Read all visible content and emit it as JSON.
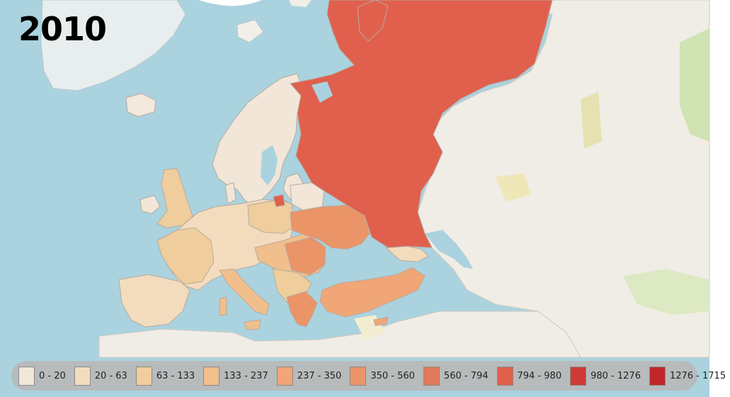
{
  "title": {
    "year": "2010"
  },
  "legend": {
    "items": [
      {
        "label": "0 - 20",
        "color": "#f1e6d8"
      },
      {
        "label": "20 - 63",
        "color": "#f3dcbd"
      },
      {
        "label": "63 - 133",
        "color": "#efcd9c"
      },
      {
        "label": "133 - 237",
        "color": "#f0bf8c"
      },
      {
        "label": "237 - 350",
        "color": "#f0a677"
      },
      {
        "label": "350 - 560",
        "color": "#eb9467"
      },
      {
        "label": "560 - 794",
        "color": "#e4785c"
      },
      {
        "label": "794 - 980",
        "color": "#e0604d"
      },
      {
        "label": "980 - 1276",
        "color": "#cf3a36"
      },
      {
        "label": "1276 - 1715",
        "color": "#c0272b"
      }
    ]
  },
  "colors": {
    "sea": "#aad3df",
    "land_base": "#f0ede6",
    "land_green": "#cfe3b3",
    "border": "#b9a9a0"
  }
}
